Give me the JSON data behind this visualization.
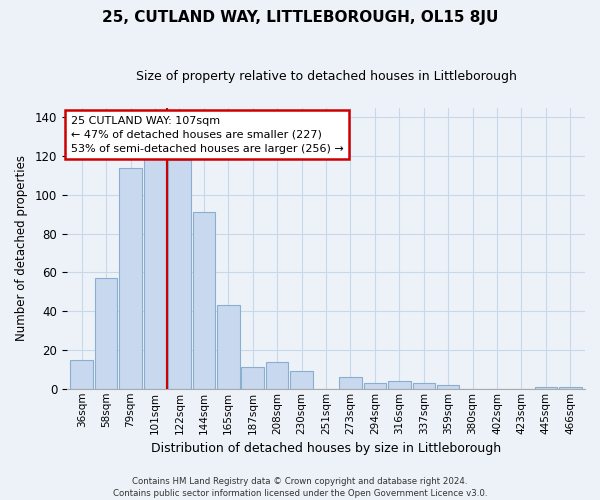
{
  "title": "25, CUTLAND WAY, LITTLEBOROUGH, OL15 8JU",
  "subtitle": "Size of property relative to detached houses in Littleborough",
  "xlabel": "Distribution of detached houses by size in Littleborough",
  "ylabel": "Number of detached properties",
  "categories": [
    "36sqm",
    "58sqm",
    "79sqm",
    "101sqm",
    "122sqm",
    "144sqm",
    "165sqm",
    "187sqm",
    "208sqm",
    "230sqm",
    "251sqm",
    "273sqm",
    "294sqm",
    "316sqm",
    "337sqm",
    "359sqm",
    "380sqm",
    "402sqm",
    "423sqm",
    "445sqm",
    "466sqm"
  ],
  "values": [
    15,
    57,
    114,
    119,
    118,
    91,
    43,
    11,
    14,
    9,
    0,
    6,
    3,
    4,
    3,
    2,
    0,
    0,
    0,
    1,
    1
  ],
  "bar_color": "#c8d8ee",
  "bar_edge_color": "#8aaed0",
  "vline_color": "#cc0000",
  "annotation_line1": "25 CUTLAND WAY: 107sqm",
  "annotation_line2": "← 47% of detached houses are smaller (227)",
  "annotation_line3": "53% of semi-detached houses are larger (256) →",
  "ylim": [
    0,
    145
  ],
  "yticks": [
    0,
    20,
    40,
    60,
    80,
    100,
    120,
    140
  ],
  "footnote": "Contains HM Land Registry data © Crown copyright and database right 2024.\nContains public sector information licensed under the Open Government Licence v3.0.",
  "grid_color": "#c8d8e8",
  "background_color": "#edf2f8",
  "title_fontsize": 11,
  "subtitle_fontsize": 9
}
